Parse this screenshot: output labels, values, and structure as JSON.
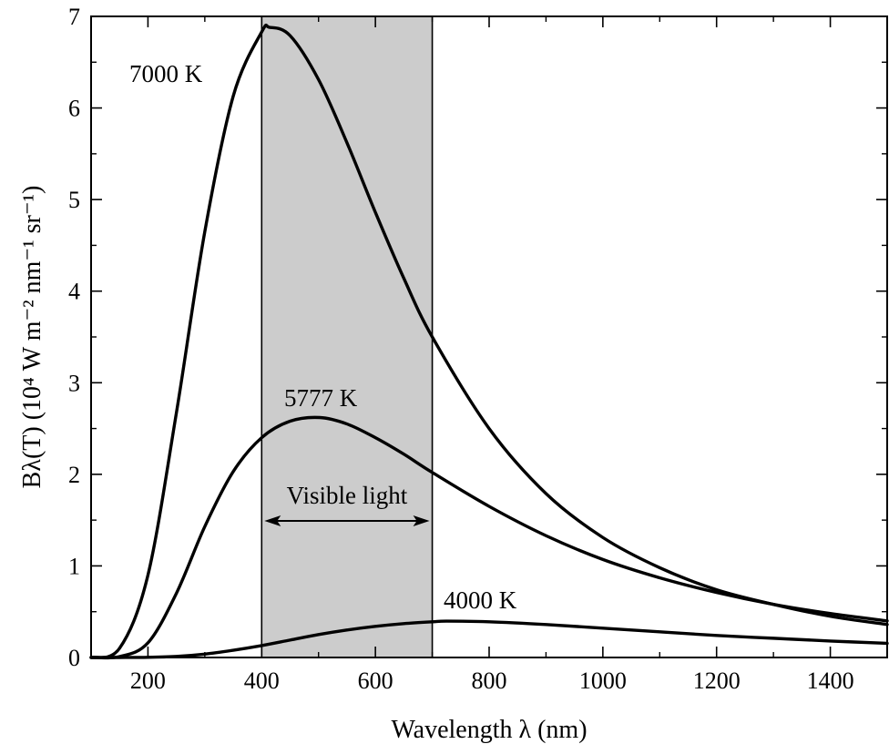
{
  "chart_data": {
    "type": "line",
    "title": "",
    "xlabel": "Wavelength λ (nm)",
    "ylabel": "Bλ(T) (10⁴ W m⁻² nm⁻¹ sr⁻¹)",
    "xlim": [
      100,
      1500
    ],
    "ylim": [
      0,
      7
    ],
    "x_ticks": [
      200,
      400,
      600,
      800,
      1000,
      1200,
      1400
    ],
    "y_ticks": [
      0,
      1,
      2,
      3,
      4,
      5,
      6,
      7
    ],
    "grid": false,
    "legend": "none",
    "series": [
      {
        "name": "7000 K",
        "temperature_K": 7000,
        "x": [
          100,
          150,
          200,
          250,
          300,
          350,
          400,
          414,
          450,
          500,
          550,
          600,
          650,
          700,
          800,
          900,
          1000,
          1100,
          1200,
          1300,
          1400,
          1500
        ],
        "y": [
          0.0002,
          0.1,
          0.9,
          2.67,
          4.65,
          6.13,
          6.83,
          6.88,
          6.79,
          6.31,
          5.62,
          4.86,
          4.14,
          3.5,
          2.5,
          1.79,
          1.31,
          0.98,
          0.74,
          0.58,
          0.45,
          0.36
        ]
      },
      {
        "name": "5777 K",
        "temperature_K": 5777,
        "x": [
          100,
          150,
          200,
          250,
          300,
          350,
          400,
          450,
          502,
          550,
          600,
          650,
          700,
          800,
          900,
          1000,
          1100,
          1200,
          1300,
          1400,
          1500
        ],
        "y": [
          0.0,
          0.01,
          0.16,
          0.7,
          1.43,
          2.03,
          2.4,
          2.58,
          2.62,
          2.55,
          2.4,
          2.22,
          2.02,
          1.65,
          1.33,
          1.07,
          0.87,
          0.71,
          0.58,
          0.48,
          0.4
        ]
      },
      {
        "name": "4000 K",
        "temperature_K": 4000,
        "x": [
          100,
          150,
          200,
          250,
          300,
          350,
          400,
          450,
          500,
          550,
          600,
          650,
          700,
          725,
          800,
          900,
          1000,
          1100,
          1200,
          1300,
          1400,
          1500
        ],
        "y": [
          0.0,
          0.0,
          0.002,
          0.012,
          0.037,
          0.079,
          0.13,
          0.19,
          0.25,
          0.3,
          0.34,
          0.37,
          0.39,
          0.397,
          0.39,
          0.36,
          0.32,
          0.28,
          0.24,
          0.21,
          0.18,
          0.155
        ]
      }
    ],
    "shaded_region": {
      "x_range": [
        400,
        700
      ],
      "label": "Visible light",
      "color": "#cccccc"
    },
    "annotations": [
      {
        "text": "7000 K",
        "series": "7000 K"
      },
      {
        "text": "5777 K",
        "series": "5777 K"
      },
      {
        "text": "4000 K",
        "series": "4000 K"
      }
    ],
    "colors": {
      "curve": "#000000",
      "shade": "#cccccc",
      "background": "#ffffff"
    }
  }
}
